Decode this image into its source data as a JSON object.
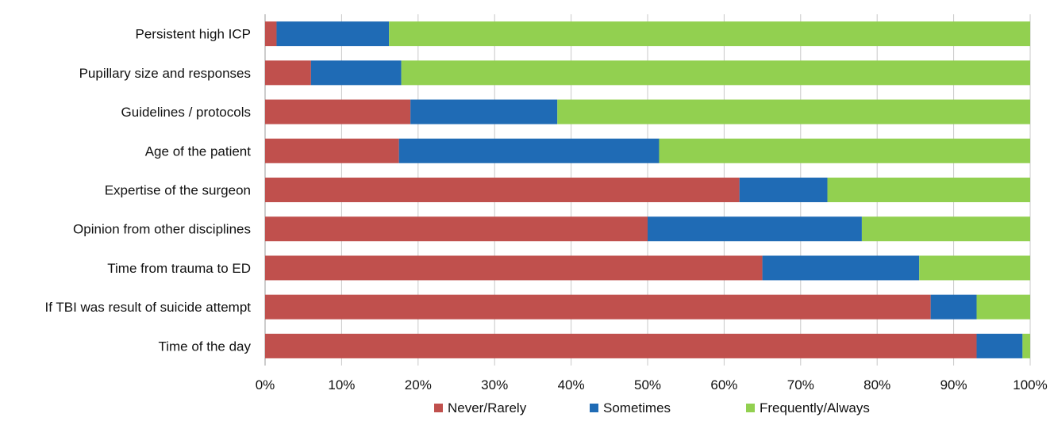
{
  "chart_data": {
    "type": "bar",
    "orientation": "horizontal",
    "stacked": true,
    "categories": [
      "Persistent high ICP",
      "Pupillary size and responses",
      "Guidelines / protocols",
      "Age of the patient",
      "Expertise of the surgeon",
      "Opinion from other disciplines",
      "Time from trauma to ED",
      "If TBI was result of suicide attempt",
      "Time of the day"
    ],
    "series": [
      {
        "name": "Never/Rarely",
        "color": "#c0504d",
        "values": [
          1.5,
          6,
          19,
          17.5,
          62,
          50,
          65,
          87,
          93
        ]
      },
      {
        "name": "Sometimes",
        "color": "#1f6bb5",
        "values": [
          14.7,
          11.8,
          19.2,
          34,
          11.5,
          28,
          20.5,
          6,
          6
        ]
      },
      {
        "name": "Frequently/Always",
        "color": "#92d050",
        "values": [
          83.8,
          82.2,
          61.8,
          48.5,
          26.5,
          22,
          14.5,
          7,
          1
        ]
      }
    ],
    "x_ticks": [
      "0%",
      "10%",
      "20%",
      "30%",
      "40%",
      "50%",
      "60%",
      "70%",
      "80%",
      "90%",
      "100%"
    ],
    "xlim": [
      0,
      100
    ],
    "title": "",
    "xlabel": "",
    "ylabel": "",
    "grid": true,
    "legend_position": "bottom"
  }
}
